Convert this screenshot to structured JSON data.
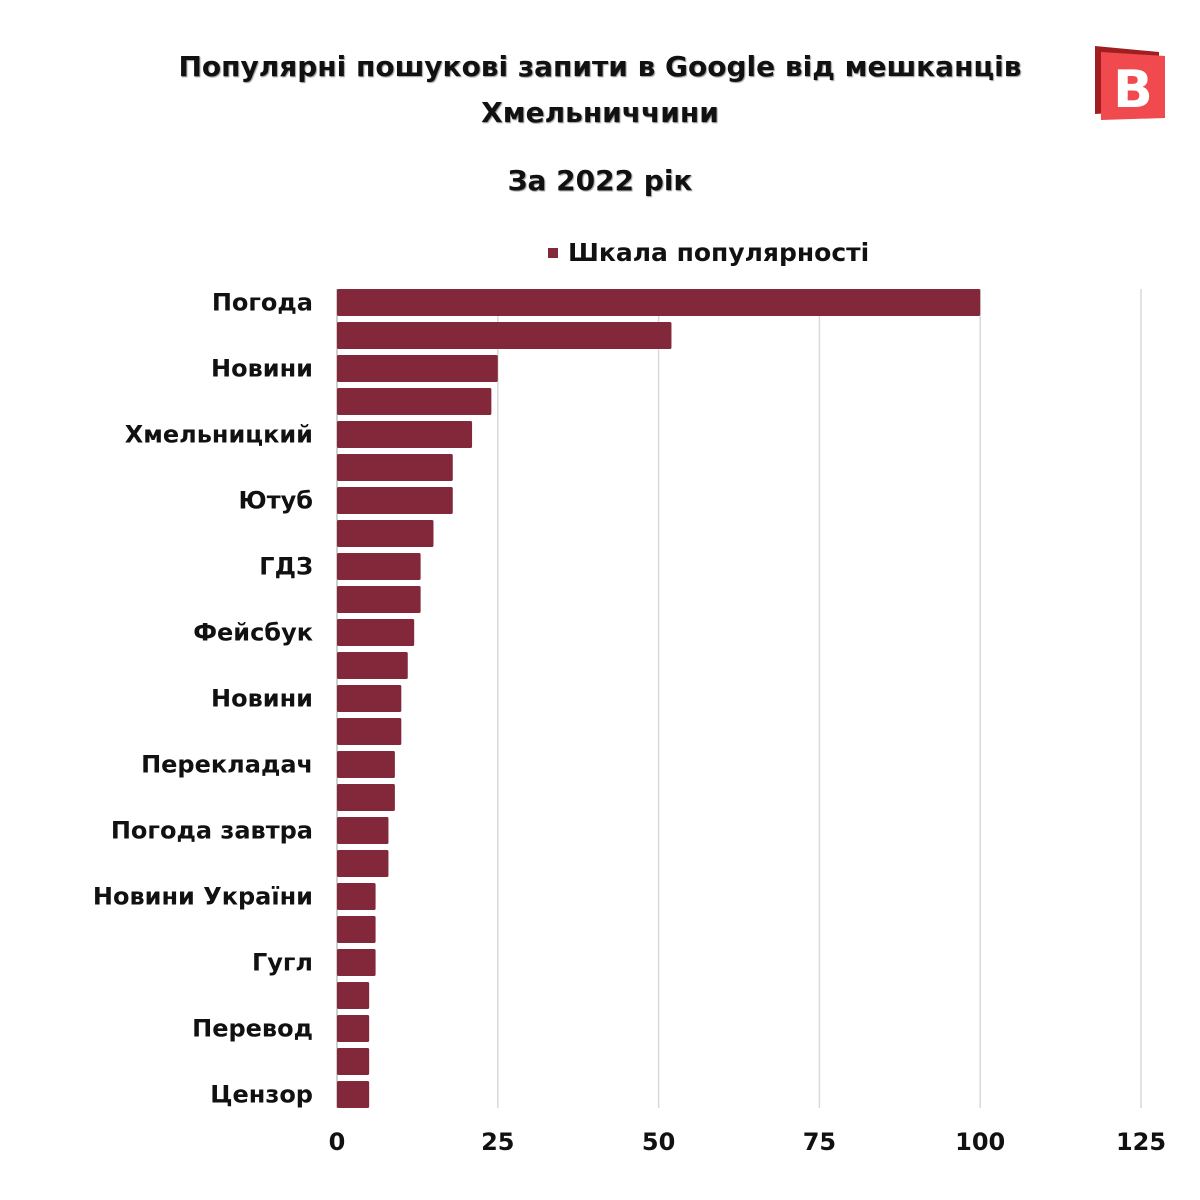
{
  "title": "Популярні пошукові запити в Google від мешканців Хмельниччини",
  "subtitle": "За 2022 рік",
  "logo_text": "В",
  "chart_data": {
    "type": "bar",
    "orientation": "horizontal",
    "title": "Популярні пошукові запити в Google від мешканців Хмельниччини",
    "subtitle": "За 2022 рік",
    "categories": [
      "Погода",
      "",
      "Новини",
      "",
      "Хмельницкий",
      "",
      "Ютуб",
      "",
      "ГДЗ",
      "",
      "Фейсбук",
      "",
      "Новини",
      "",
      "Перекладач",
      "",
      "Погода завтра",
      "",
      "Новини України",
      "",
      "Гугл",
      "",
      "Перевод",
      "",
      "Цензор"
    ],
    "series": [
      {
        "name": "Шкала популярності",
        "values": [
          100,
          52,
          25,
          24,
          21,
          18,
          18,
          15,
          13,
          13,
          12,
          11,
          10,
          10,
          9,
          9,
          8,
          8,
          6,
          6,
          6,
          5,
          5,
          5,
          5
        ]
      }
    ],
    "xlim": [
      0,
      125
    ],
    "ticks": [
      0,
      25,
      50,
      75,
      100,
      125
    ],
    "grid": true,
    "legend": "top",
    "colors": {
      "bar": "#83283A",
      "grid": "#D9D9D9",
      "logo": "#F04A4E",
      "logo_dark": "#A01E22"
    }
  }
}
